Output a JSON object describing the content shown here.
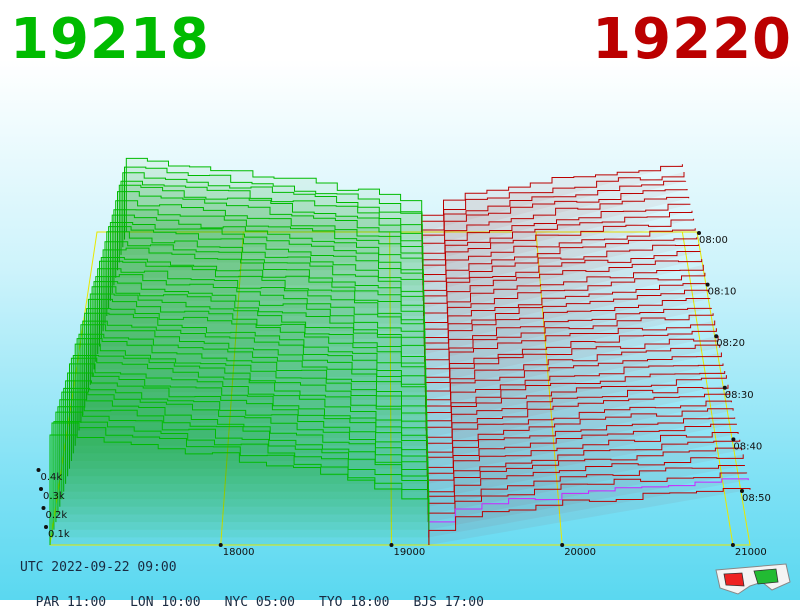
{
  "header": {
    "bid_price": "19218",
    "ask_price": "19220",
    "bid_color": "#00bb00",
    "ask_color": "#bb0000"
  },
  "footer": {
    "utc_label": "UTC 2022-09-22 09:00",
    "zones": [
      "PAR 11:00",
      "LON 10:00",
      "NYC 05:00",
      "TYO 18:00",
      "BJS 17:00"
    ]
  },
  "chart_data": {
    "type": "area",
    "x_ticks": [
      "18000",
      "19000",
      "20000",
      "21000"
    ],
    "x_range": [
      17000,
      21100
    ],
    "y_ticks": [
      "0.1k",
      "0.2k",
      "0.3k",
      "0.4k"
    ],
    "time_ticks": [
      "08:00",
      "08:10",
      "08:20",
      "08:30",
      "08:40",
      "08:50"
    ],
    "series": [
      {
        "color": "#00bb00"
      },
      {
        "color": "#bb0000"
      }
    ],
    "grid_color": "#e8e800",
    "highlight_color": "#cc22ff"
  },
  "icons": {
    "glasses": "3d-glasses-icon"
  }
}
